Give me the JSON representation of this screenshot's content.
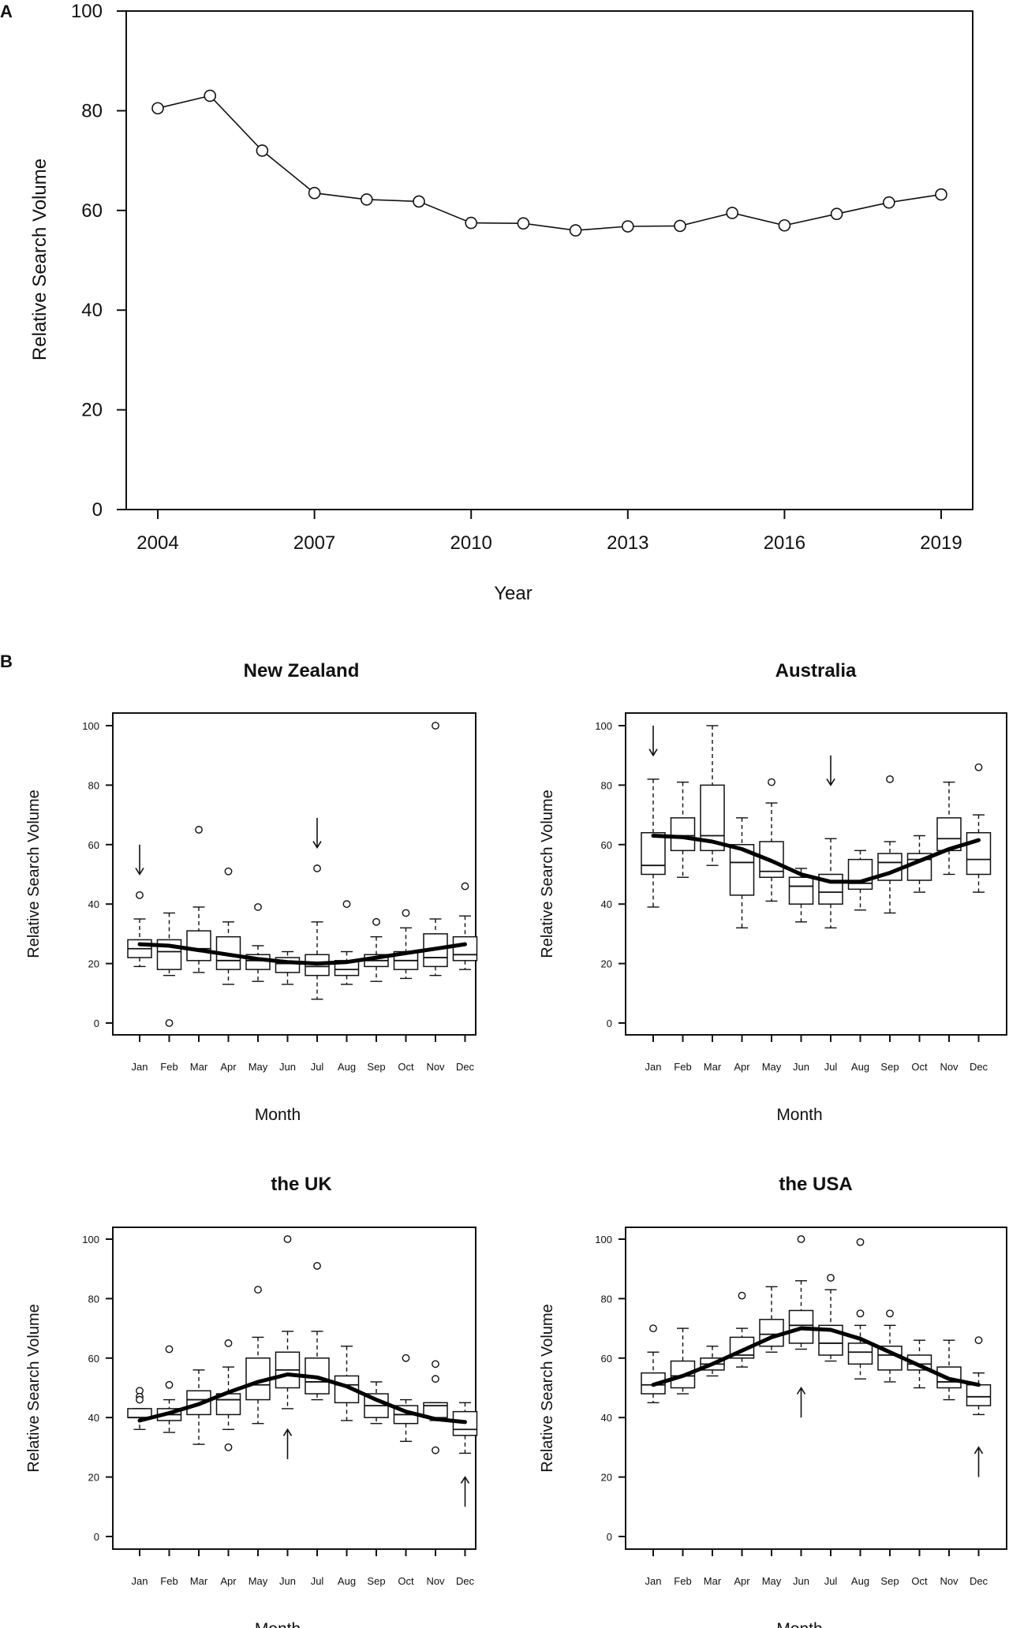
{
  "chart_data": [
    {
      "panel": "A",
      "type": "line",
      "title": "",
      "xlabel": "Year",
      "ylabel": "Relative Search Volume",
      "x": [
        2004,
        2005,
        2006,
        2007,
        2008,
        2009,
        2010,
        2011,
        2012,
        2013,
        2014,
        2015,
        2016,
        2017,
        2018,
        2019
      ],
      "values": [
        80.5,
        83,
        72,
        63.5,
        62.2,
        61.8,
        57.5,
        57.4,
        56,
        56.8,
        56.9,
        59.5,
        57,
        59.3,
        61.6,
        63.2
      ],
      "xticks": [
        "2004",
        "2007",
        "2010",
        "2013",
        "2016",
        "2019"
      ],
      "xtick_values": [
        2004,
        2007,
        2010,
        2013,
        2016,
        2019
      ],
      "yticks": [
        "0",
        "20",
        "40",
        "60",
        "80",
        "100"
      ],
      "ylim": [
        0,
        100
      ],
      "xlim": [
        2003.25,
        2019.75
      ],
      "grid": false
    },
    {
      "panel": "B",
      "type": "box",
      "title": "New Zealand",
      "xlabel": "Month",
      "ylabel": "Relative Search Volume",
      "categories": [
        "Jan",
        "Feb",
        "Mar",
        "Apr",
        "May",
        "Jun",
        "Jul",
        "Aug",
        "Sep",
        "Oct",
        "Nov",
        "Dec"
      ],
      "yticks": [
        "0",
        "20",
        "40",
        "60",
        "80",
        "100"
      ],
      "ylim": [
        0,
        100
      ],
      "boxes": [
        {
          "min": 19,
          "q1": 22,
          "median": 25,
          "q3": 28,
          "max": 35,
          "outliers": [
            43
          ]
        },
        {
          "min": 16,
          "q1": 18,
          "median": 24,
          "q3": 28,
          "max": 37,
          "outliers": [
            0
          ]
        },
        {
          "min": 17,
          "q1": 21,
          "median": 25,
          "q3": 31,
          "max": 39,
          "outliers": [
            65
          ]
        },
        {
          "min": 13,
          "q1": 18,
          "median": 21,
          "q3": 29,
          "max": 34,
          "outliers": [
            51
          ]
        },
        {
          "min": 14,
          "q1": 18,
          "median": 21,
          "q3": 23,
          "max": 26,
          "outliers": [
            39
          ]
        },
        {
          "min": 13,
          "q1": 17,
          "median": 20,
          "q3": 22,
          "max": 24,
          "outliers": []
        },
        {
          "min": 8,
          "q1": 16,
          "median": 19,
          "q3": 23,
          "max": 34,
          "outliers": [
            52
          ]
        },
        {
          "min": 13,
          "q1": 16,
          "median": 18,
          "q3": 21,
          "max": 24,
          "outliers": [
            40
          ]
        },
        {
          "min": 14,
          "q1": 19,
          "median": 21,
          "q3": 23,
          "max": 29,
          "outliers": [
            34
          ]
        },
        {
          "min": 15,
          "q1": 18,
          "median": 21,
          "q3": 24,
          "max": 32,
          "outliers": [
            37
          ]
        },
        {
          "min": 16,
          "q1": 19,
          "median": 22,
          "q3": 30,
          "max": 35,
          "outliers": [
            100
          ]
        },
        {
          "min": 18,
          "q1": 21,
          "median": 23,
          "q3": 29,
          "max": 36,
          "outliers": [
            46
          ]
        }
      ],
      "trend": [
        26.5,
        26,
        24.5,
        23,
        21.5,
        20.5,
        20,
        20.5,
        22,
        23.5,
        25,
        26.5
      ],
      "arrows": [
        {
          "month": "Jan",
          "direction": "down",
          "from": 60,
          "to": 50
        },
        {
          "month": "Jul",
          "direction": "down",
          "from": 69,
          "to": 59
        }
      ]
    },
    {
      "panel": "B",
      "type": "box",
      "title": "Australia",
      "xlabel": "Month",
      "ylabel": "Relative Search Volume",
      "categories": [
        "Jan",
        "Feb",
        "Mar",
        "Apr",
        "May",
        "Jun",
        "Jul",
        "Aug",
        "Sep",
        "Oct",
        "Nov",
        "Dec"
      ],
      "yticks": [
        "0",
        "20",
        "40",
        "60",
        "80",
        "100"
      ],
      "ylim": [
        0,
        100
      ],
      "boxes": [
        {
          "min": 39,
          "q1": 50,
          "median": 53,
          "q3": 64,
          "max": 82,
          "outliers": []
        },
        {
          "min": 49,
          "q1": 58,
          "median": 63,
          "q3": 69,
          "max": 81,
          "outliers": []
        },
        {
          "min": 53,
          "q1": 58,
          "median": 63,
          "q3": 80,
          "max": 100,
          "outliers": []
        },
        {
          "min": 32,
          "q1": 43,
          "median": 54,
          "q3": 60,
          "max": 69,
          "outliers": []
        },
        {
          "min": 41,
          "q1": 49,
          "median": 51,
          "q3": 61,
          "max": 74,
          "outliers": [
            81
          ]
        },
        {
          "min": 34,
          "q1": 40,
          "median": 46,
          "q3": 49,
          "max": 52,
          "outliers": []
        },
        {
          "min": 32,
          "q1": 40,
          "median": 44,
          "q3": 50,
          "max": 62,
          "outliers": []
        },
        {
          "min": 38,
          "q1": 45,
          "median": 47,
          "q3": 55,
          "max": 58,
          "outliers": []
        },
        {
          "min": 37,
          "q1": 48,
          "median": 54,
          "q3": 57,
          "max": 61,
          "outliers": [
            82
          ]
        },
        {
          "min": 44,
          "q1": 48,
          "median": 55,
          "q3": 57,
          "max": 63,
          "outliers": []
        },
        {
          "min": 50,
          "q1": 58,
          "median": 62,
          "q3": 69,
          "max": 81,
          "outliers": []
        },
        {
          "min": 44,
          "q1": 50,
          "median": 55,
          "q3": 64,
          "max": 70,
          "outliers": [
            86
          ]
        }
      ],
      "trend": [
        63,
        62.5,
        61,
        58.5,
        54.5,
        50,
        47.5,
        47.5,
        50.5,
        54.5,
        58.5,
        61.5
      ],
      "arrows": [
        {
          "month": "Jan",
          "direction": "down",
          "from": 100,
          "to": 90
        },
        {
          "month": "Jul",
          "direction": "down",
          "from": 90,
          "to": 80
        }
      ]
    },
    {
      "panel": "B",
      "type": "box",
      "title": "the UK",
      "xlabel": "Month",
      "ylabel": "Relative Search Volume",
      "categories": [
        "Jan",
        "Feb",
        "Mar",
        "Apr",
        "May",
        "Jun",
        "Jul",
        "Aug",
        "Sep",
        "Oct",
        "Nov",
        "Dec"
      ],
      "yticks": [
        "0",
        "20",
        "40",
        "60",
        "80",
        "100"
      ],
      "ylim": [
        0,
        100
      ],
      "boxes": [
        {
          "min": 36,
          "q1": 40,
          "median": 40,
          "q3": 43,
          "max": 43,
          "outliers": [
            49,
            47,
            46
          ]
        },
        {
          "min": 35,
          "q1": 39,
          "median": 41,
          "q3": 43,
          "max": 46,
          "outliers": [
            63,
            51
          ]
        },
        {
          "min": 31,
          "q1": 41,
          "median": 46,
          "q3": 49,
          "max": 56,
          "outliers": []
        },
        {
          "min": 36,
          "q1": 41,
          "median": 46,
          "q3": 48,
          "max": 57,
          "outliers": [
            65,
            30
          ]
        },
        {
          "min": 38,
          "q1": 46,
          "median": 51,
          "q3": 60,
          "max": 67,
          "outliers": [
            83
          ]
        },
        {
          "min": 43,
          "q1": 50,
          "median": 56,
          "q3": 62,
          "max": 69,
          "outliers": [
            100
          ]
        },
        {
          "min": 46,
          "q1": 48,
          "median": 52,
          "q3": 60,
          "max": 69,
          "outliers": [
            91
          ]
        },
        {
          "min": 39,
          "q1": 45,
          "median": 51,
          "q3": 54,
          "max": 64,
          "outliers": []
        },
        {
          "min": 38,
          "q1": 40,
          "median": 44,
          "q3": 48,
          "max": 52,
          "outliers": []
        },
        {
          "min": 32,
          "q1": 38,
          "median": 41,
          "q3": 44,
          "max": 46,
          "outliers": [
            60
          ]
        },
        {
          "min": 39,
          "q1": 40,
          "median": 44,
          "q3": 45,
          "max": 45,
          "outliers": [
            58,
            53,
            29
          ]
        },
        {
          "min": 28,
          "q1": 34,
          "median": 36,
          "q3": 42,
          "max": 45,
          "outliers": []
        }
      ],
      "trend": [
        39,
        41.5,
        44.5,
        48.5,
        52,
        54.5,
        53.5,
        50.5,
        46,
        42,
        39.5,
        38.5
      ],
      "arrows": [
        {
          "month": "Jun",
          "direction": "up",
          "from": 26,
          "to": 36
        },
        {
          "month": "Dec",
          "direction": "up",
          "from": 10,
          "to": 20
        }
      ]
    },
    {
      "panel": "B",
      "type": "box",
      "title": "the USA",
      "xlabel": "Month",
      "ylabel": "Relative Search Volume",
      "categories": [
        "Jan",
        "Feb",
        "Mar",
        "Apr",
        "May",
        "Jun",
        "Jul",
        "Aug",
        "Sep",
        "Oct",
        "Nov",
        "Dec"
      ],
      "yticks": [
        "0",
        "20",
        "40",
        "60",
        "80",
        "100"
      ],
      "ylim": [
        0,
        100
      ],
      "boxes": [
        {
          "min": 45,
          "q1": 48,
          "median": 51,
          "q3": 55,
          "max": 62,
          "outliers": [
            70
          ]
        },
        {
          "min": 48,
          "q1": 50,
          "median": 54,
          "q3": 59,
          "max": 70,
          "outliers": []
        },
        {
          "min": 54,
          "q1": 56,
          "median": 58,
          "q3": 60,
          "max": 64,
          "outliers": []
        },
        {
          "min": 57,
          "q1": 60,
          "median": 61,
          "q3": 67,
          "max": 70,
          "outliers": [
            81
          ]
        },
        {
          "min": 62,
          "q1": 64,
          "median": 68,
          "q3": 73,
          "max": 84,
          "outliers": []
        },
        {
          "min": 63,
          "q1": 65,
          "median": 71,
          "q3": 76,
          "max": 86,
          "outliers": [
            100
          ]
        },
        {
          "min": 59,
          "q1": 61,
          "median": 65,
          "q3": 71,
          "max": 83,
          "outliers": [
            87
          ]
        },
        {
          "min": 53,
          "q1": 58,
          "median": 62,
          "q3": 65,
          "max": 71,
          "outliers": [
            99,
            75
          ]
        },
        {
          "min": 52,
          "q1": 56,
          "median": 61,
          "q3": 64,
          "max": 71,
          "outliers": [
            75
          ]
        },
        {
          "min": 50,
          "q1": 56,
          "median": 58,
          "q3": 61,
          "max": 66,
          "outliers": []
        },
        {
          "min": 46,
          "q1": 50,
          "median": 52,
          "q3": 57,
          "max": 66,
          "outliers": []
        },
        {
          "min": 41,
          "q1": 44,
          "median": 47,
          "q3": 51,
          "max": 55,
          "outliers": [
            66
          ]
        }
      ],
      "trend": [
        51,
        54,
        58,
        62.5,
        67,
        70,
        69.5,
        66.5,
        62,
        57.5,
        53,
        51
      ],
      "arrows": [
        {
          "month": "Jun",
          "direction": "up",
          "from": 40,
          "to": 50
        },
        {
          "month": "Dec",
          "direction": "up",
          "from": 20,
          "to": 30
        }
      ]
    }
  ],
  "panel_labels": {
    "a": "A",
    "b": "B"
  }
}
